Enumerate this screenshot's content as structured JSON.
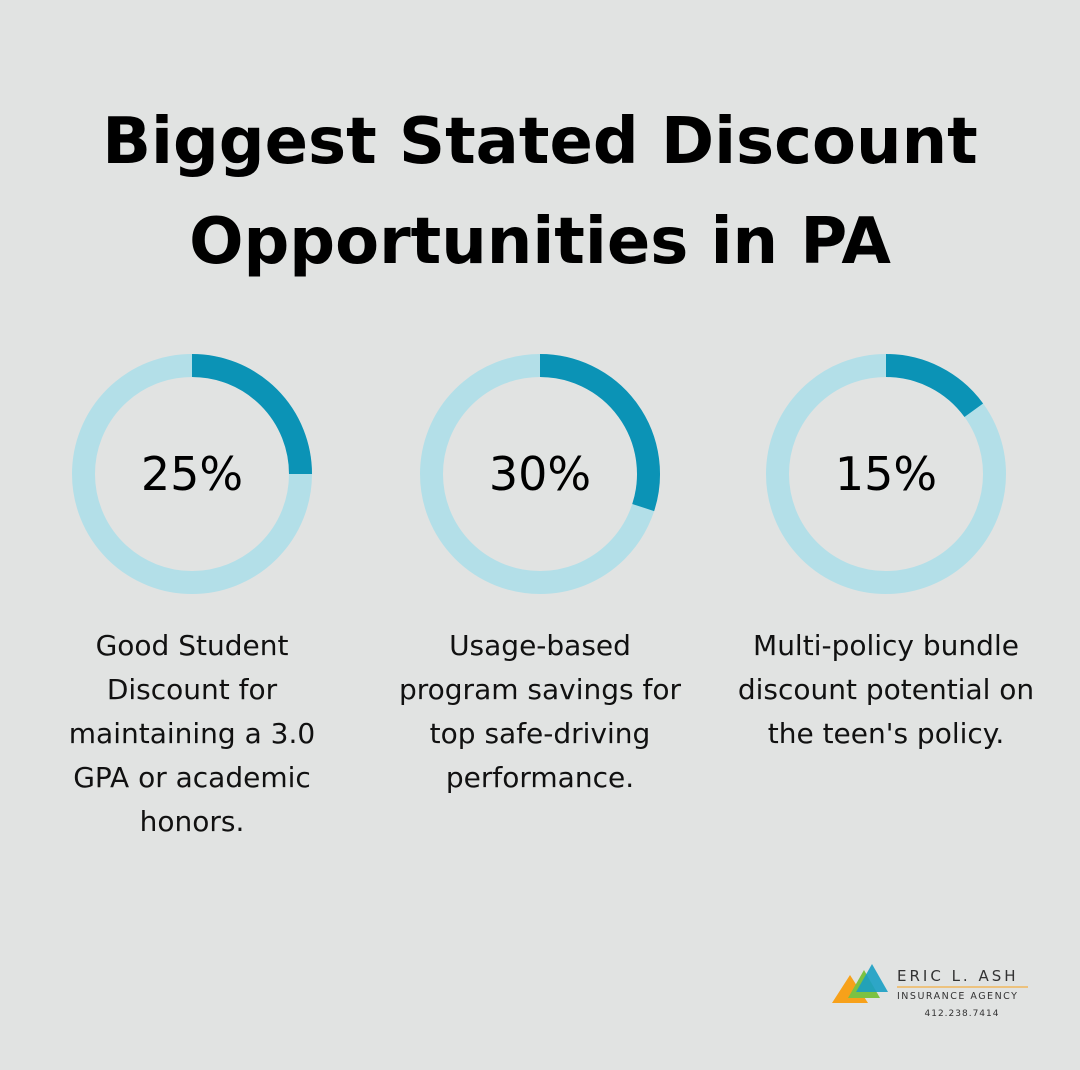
{
  "title": "Biggest Stated Discount Opportunities in PA",
  "chart_data": [
    {
      "type": "donut",
      "values": [
        25
      ],
      "value_labels": [
        "25%"
      ],
      "caption": "Good Student Discount for maintaining a 3.0 GPA or academic honors.",
      "color": "#0b93b6",
      "track_color": "#b3dfe8"
    },
    {
      "type": "donut",
      "values": [
        30
      ],
      "value_labels": [
        "30%"
      ],
      "caption": "Usage-based program savings for top safe-driving performance.",
      "color": "#0b93b6",
      "track_color": "#b3dfe8"
    },
    {
      "type": "donut",
      "values": [
        15
      ],
      "value_labels": [
        "15%"
      ],
      "caption": "Multi-policy bundle discount potential on the teen's policy.",
      "color": "#0b93b6",
      "track_color": "#b3dfe8"
    }
  ],
  "logo": {
    "name": "ERIC L. ASH",
    "subtitle": "INSURANCE AGENCY",
    "phone": "412.238.7414"
  }
}
